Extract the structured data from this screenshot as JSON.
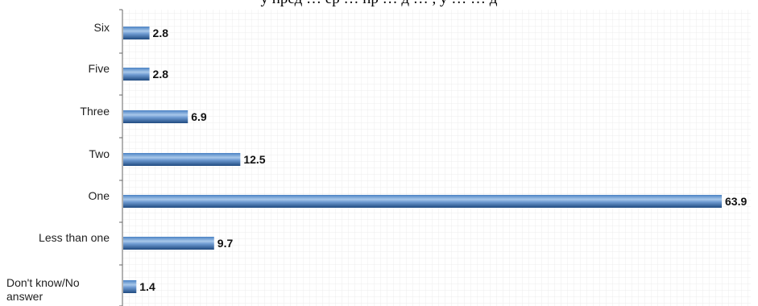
{
  "header_text": "у пред …  ер …  пр … д …  , у … … д",
  "colors": {
    "bar_edge": "#3a6fb0",
    "bar_mid": "#9fc0e6",
    "bar_dark": "#1f4a80",
    "grid": "#e4e4e4",
    "axis": "#666666"
  },
  "chart_data": {
    "type": "bar",
    "orientation": "horizontal",
    "categories": [
      "Six",
      "Five",
      "Three",
      "Two",
      "One",
      "Less than one",
      "Don't know/No answer"
    ],
    "values": [
      2.8,
      2.8,
      6.9,
      12.5,
      63.9,
      9.7,
      1.4
    ],
    "value_labels": [
      "2.8",
      "2.8",
      "6.9",
      "12.5",
      "63.9",
      "9.7",
      "1.4"
    ],
    "xlim": [
      0,
      63.9
    ],
    "grid": true,
    "title": "",
    "xlabel": "",
    "ylabel": ""
  }
}
